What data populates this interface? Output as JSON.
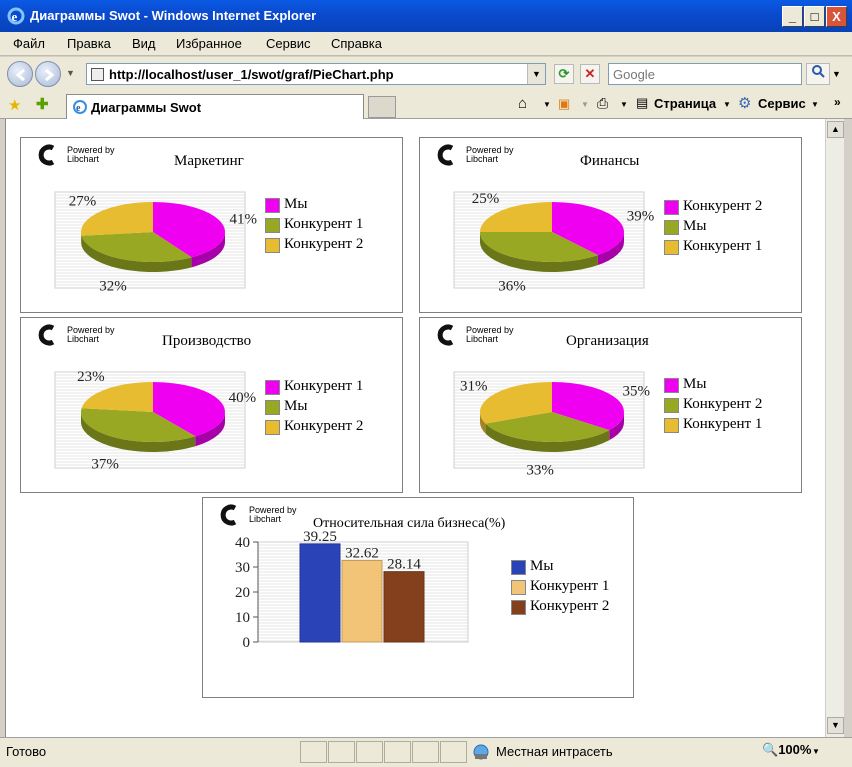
{
  "window": {
    "title": "Диаграммы Swot - Windows Internet Explorer",
    "minimize": "_",
    "maximize": "□",
    "close": "X"
  },
  "menu": [
    "Файл",
    "Правка",
    "Вид",
    "Избранное",
    "Сервис",
    "Справка"
  ],
  "address": {
    "url": "http://localhost/user_1/swot/graf/PieChart.php",
    "search_placeholder": "Google"
  },
  "tab": {
    "label": "Диаграммы Swot"
  },
  "commands": {
    "page": "Страница",
    "tools": "Сервис"
  },
  "libchart": {
    "line1": "Powered by",
    "line2": "Libchart"
  },
  "colors": {
    "magenta": "#f000f0",
    "olive": "#98a822",
    "gold": "#e8bc30",
    "blue": "#2a44b8",
    "tan": "#f2c478",
    "brown": "#84401c"
  },
  "chart_data": [
    {
      "type": "pie",
      "title": "Маркетинг",
      "slices": [
        {
          "name": "Мы",
          "value": 41,
          "label": "41%",
          "color": "#f000f0"
        },
        {
          "name": "Конкурент 1",
          "value": 32,
          "label": "32%",
          "color": "#98a822"
        },
        {
          "name": "Конкурент 2",
          "value": 27,
          "label": "27%",
          "color": "#e8bc30"
        }
      ]
    },
    {
      "type": "pie",
      "title": "Финансы",
      "slices": [
        {
          "name": "Конкурент 2",
          "value": 39,
          "label": "39%",
          "color": "#f000f0"
        },
        {
          "name": "Мы",
          "value": 36,
          "label": "36%",
          "color": "#98a822"
        },
        {
          "name": "Конкурент 1",
          "value": 25,
          "label": "25%",
          "color": "#e8bc30"
        }
      ]
    },
    {
      "type": "pie",
      "title": "Производство",
      "slices": [
        {
          "name": "Конкурент 1",
          "value": 40,
          "label": "40%",
          "color": "#f000f0"
        },
        {
          "name": "Мы",
          "value": 37,
          "label": "37%",
          "color": "#98a822"
        },
        {
          "name": "Конкурент 2",
          "value": 23,
          "label": "23%",
          "color": "#e8bc30"
        }
      ]
    },
    {
      "type": "pie",
      "title": "Организация",
      "slices": [
        {
          "name": "Мы",
          "value": 35,
          "label": "35%",
          "color": "#f000f0"
        },
        {
          "name": "Конкурент 2",
          "value": 33,
          "label": "33%",
          "color": "#98a822"
        },
        {
          "name": "Конкурент 1",
          "value": 31,
          "label": "31%",
          "color": "#e8bc30"
        }
      ]
    },
    {
      "type": "bar",
      "title": "Относительная сила бизнеса(%)",
      "categories": [
        "Мы",
        "Конкурент 1",
        "Конкурент 2"
      ],
      "values": [
        39.25,
        32.62,
        28.14
      ],
      "value_labels": [
        "39.25",
        "32.62",
        "28.14"
      ],
      "colors": [
        "#2a44b8",
        "#f2c478",
        "#84401c"
      ],
      "yticks": [
        0,
        10,
        20,
        30,
        40
      ],
      "ylim": [
        0,
        40
      ]
    }
  ],
  "status": {
    "text": "Готово",
    "zone": "Местная интрасеть",
    "zoom": "100%"
  }
}
